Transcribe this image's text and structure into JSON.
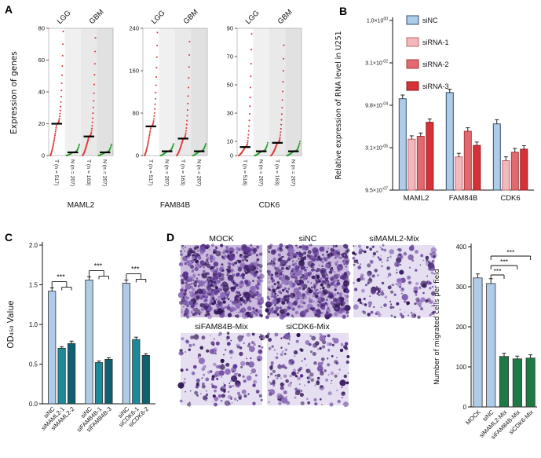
{
  "panels": {
    "A": {
      "label": "A"
    },
    "B": {
      "label": "B"
    },
    "C": {
      "label": "C"
    },
    "D": {
      "label": "D"
    }
  },
  "colors": {
    "tumor_dot": "#e03c3c",
    "normal_dot": "#2f9e33",
    "median_bar": "#000000",
    "axis": "#111111",
    "bar_blue": "#aecbe8",
    "bar_blue_stroke": "#33506e",
    "bar_pink": "#f2b8bb",
    "bar_pink_stroke": "#c2686e",
    "bar_red_mid": "#e2696d",
    "bar_red_mid_stroke": "#a93a3e",
    "bar_red": "#d63136",
    "bar_red_stroke": "#8f1e22",
    "bar_teal": "#1d8a99",
    "bar_teal_stroke": "#0d5560",
    "bar_teal_dark": "#0f6170",
    "bar_teal_dark_stroke": "#083b45",
    "bar_green": "#1e7a45",
    "bar_green_stroke": "#0c4626",
    "image_bg_dense": "#cbbbdd",
    "image_bg_sparse": "#e6dff1",
    "cell_palette": [
      "#3f2168",
      "#5a3490",
      "#7350a5",
      "#8d6cba",
      "#2e1650"
    ]
  },
  "chart_data": [
    {
      "id": "A",
      "type": "scatter",
      "description": "Expression dot plots, tumor (red) vs normal (green), LGG and GBM cohorts",
      "ylabel": "Expression of genes",
      "group_labels": [
        "LGG",
        "GBM"
      ],
      "subplots": [
        {
          "gene": "MAML2",
          "ylim": [
            0,
            80
          ],
          "yticks": [
            0,
            20,
            40,
            60,
            80
          ],
          "columns": [
            {
              "label": "T (n = 517)",
              "group": "LGG",
              "type": "tumor",
              "median": 20,
              "max": 78
            },
            {
              "label": "N (n = 207)",
              "group": "LGG",
              "type": "normal",
              "median": 2,
              "max": 7
            },
            {
              "label": "T (n = 163)",
              "group": "GBM",
              "type": "tumor",
              "median": 12,
              "max": 74
            },
            {
              "label": "N (n = 207)",
              "group": "GBM",
              "type": "normal",
              "median": 2,
              "max": 7
            }
          ]
        },
        {
          "gene": "FAM84B",
          "ylim": [
            0,
            240
          ],
          "yticks": [
            0,
            80,
            160,
            240
          ],
          "columns": [
            {
              "label": "T (n = 517)",
              "group": "LGG",
              "type": "tumor",
              "median": 55,
              "max": 232
            },
            {
              "label": "N (n = 207)",
              "group": "LGG",
              "type": "normal",
              "median": 8,
              "max": 22
            },
            {
              "label": "T (n = 163)",
              "group": "GBM",
              "type": "tumor",
              "median": 32,
              "max": 215
            },
            {
              "label": "N (n = 207)",
              "group": "GBM",
              "type": "normal",
              "median": 8,
              "max": 22
            }
          ]
        },
        {
          "gene": "CDK6",
          "ylim": [
            0,
            90
          ],
          "yticks": [
            0,
            10,
            30,
            50,
            70,
            90
          ],
          "columns": [
            {
              "label": "T (n = 518)",
              "group": "LGG",
              "type": "tumor",
              "median": 6,
              "max": 86
            },
            {
              "label": "N (n = 207)",
              "group": "LGG",
              "type": "normal",
              "median": 3,
              "max": 9
            },
            {
              "label": "T (n = 163)",
              "group": "GBM",
              "type": "tumor",
              "median": 9,
              "max": 78
            },
            {
              "label": "N (n = 207)",
              "group": "GBM",
              "type": "normal",
              "median": 3,
              "max": 10
            }
          ]
        }
      ]
    },
    {
      "id": "B",
      "type": "bar",
      "ylabel": "Relative expression of RNA level in U251",
      "yscale": "log",
      "log_range": [
        -6,
        0
      ],
      "ytick_labels": [
        "1.0×10^00",
        "3.1×10^-02",
        "9.8×10^-04",
        "3.1×10^-05",
        "9.5×10^-07"
      ],
      "categories": [
        "MAML2",
        "FAM84B",
        "CDK6"
      ],
      "series": [
        {
          "name": "siNC",
          "fill_key": "bar_blue",
          "stroke_key": "bar_blue_stroke",
          "values": [
            0.0017,
            0.0028,
            0.00022
          ],
          "errors": [
            0.0006,
            0.0009,
            9e-05
          ]
        },
        {
          "name": "siRNA-1",
          "fill_key": "bar_pink",
          "stroke_key": "bar_pink_stroke",
          "values": [
            6.3e-05,
            1.5e-05,
            1.1e-05
          ],
          "errors": [
            2e-05,
            5e-06,
            4e-06
          ]
        },
        {
          "name": "siRNA-2",
          "fill_key": "bar_red_mid",
          "stroke_key": "bar_red_mid_stroke",
          "values": [
            8e-05,
            0.00012,
            2.2e-05
          ],
          "errors": [
            2.5e-05,
            4e-05,
            8e-06
          ]
        },
        {
          "name": "siRNA-3",
          "fill_key": "bar_red",
          "stroke_key": "bar_red_stroke",
          "values": [
            0.00025,
            3.8e-05,
            2.8e-05
          ],
          "errors": [
            8e-05,
            1.2e-05,
            9e-06
          ]
        }
      ],
      "legend": {
        "position": "top-left-inside",
        "entries": [
          "siNC",
          "siRNA-1",
          "siRNA-2",
          "siRNA-3"
        ]
      }
    },
    {
      "id": "C",
      "type": "bar",
      "ylabel": "OD₄₅₀ Value",
      "ylim": [
        0,
        2.0
      ],
      "ytick_labels": [
        "0.0",
        "0.5",
        "1.0",
        "1.5",
        "2.0"
      ],
      "categories": [
        "siNC",
        "siMAML2-1",
        "siMAML2-2",
        "siNC",
        "siFAM84B-1",
        "siFAM84B-3",
        "siNC",
        "siCDK6-1",
        "siCDK6-2"
      ],
      "values": [
        1.42,
        0.7,
        0.76,
        1.56,
        0.52,
        0.56,
        1.52,
        0.81,
        0.61
      ],
      "errors": [
        0.04,
        0.02,
        0.03,
        0.04,
        0.02,
        0.02,
        0.04,
        0.03,
        0.02
      ],
      "bar_color_keys": [
        "bar_blue",
        "bar_teal",
        "bar_teal_dark",
        "bar_blue",
        "bar_teal",
        "bar_teal_dark",
        "bar_blue",
        "bar_teal",
        "bar_teal_dark"
      ],
      "groups": [
        [
          0,
          1,
          2
        ],
        [
          3,
          4,
          5
        ],
        [
          6,
          7,
          8
        ]
      ],
      "significance": [
        {
          "control": 0,
          "pair": [
            1,
            2
          ],
          "label": "***"
        },
        {
          "control": 3,
          "pair": [
            4,
            5
          ],
          "label": "***"
        },
        {
          "control": 6,
          "pair": [
            7,
            8
          ],
          "label": "***"
        }
      ]
    },
    {
      "id": "D",
      "type": "bar",
      "ylabel": "Number of migrated cells per field",
      "ylim": [
        0,
        400
      ],
      "ytick_labels": [
        "0",
        "100",
        "200",
        "300",
        "400"
      ],
      "categories": [
        "MOCK",
        "siNC",
        "siMAML2-Mix",
        "siFAM84B-Mix",
        "siCDK6-Mix"
      ],
      "values": [
        322,
        308,
        126,
        120,
        122
      ],
      "errors": [
        10,
        12,
        8,
        7,
        8
      ],
      "bar_color_keys": [
        "bar_blue",
        "bar_blue",
        "bar_green",
        "bar_green",
        "bar_green"
      ],
      "significance": [
        {
          "from": 1,
          "to": 2,
          "label": "***"
        },
        {
          "from": 1,
          "to": 3,
          "label": "***"
        },
        {
          "from": 1,
          "to": 4,
          "label": "***"
        }
      ]
    }
  ],
  "migration_images": [
    {
      "title": "MOCK",
      "density": "high",
      "cell_count": 620,
      "bg_key": "image_bg_dense"
    },
    {
      "title": "siNC",
      "density": "high",
      "cell_count": 620,
      "bg_key": "image_bg_dense"
    },
    {
      "title": "siMAML2-Mix",
      "density": "low",
      "cell_count": 210,
      "bg_key": "image_bg_sparse"
    },
    {
      "title": "siFAM84B-Mix",
      "density": "low",
      "cell_count": 190,
      "bg_key": "image_bg_sparse"
    },
    {
      "title": "siCDK6-Mix",
      "density": "low",
      "cell_count": 190,
      "bg_key": "image_bg_sparse"
    }
  ]
}
